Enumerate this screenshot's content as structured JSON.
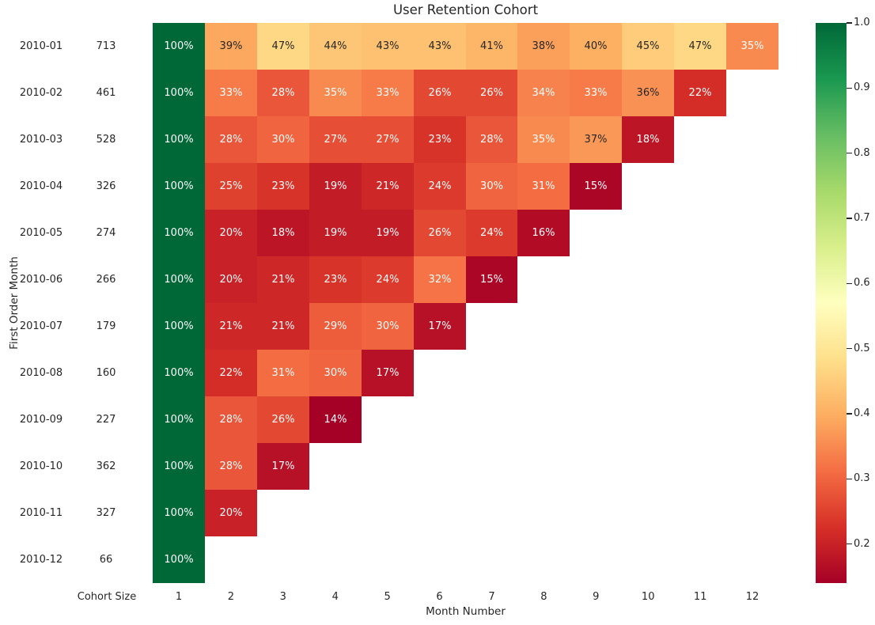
{
  "chart_data": {
    "type": "heatmap",
    "title": "User Retention Cohort",
    "xlabel": "Month Number",
    "ylabel": "First Order Month",
    "row_header_label": "Cohort Size",
    "x_ticks": [
      "1",
      "2",
      "3",
      "4",
      "5",
      "6",
      "7",
      "8",
      "9",
      "10",
      "11",
      "12"
    ],
    "colormap": "RdYlGn",
    "vmin": 0.14,
    "vmax": 1.0,
    "annotation_format": "percent",
    "rows": [
      {
        "first_order_month": "2010-01",
        "cohort_size": "713",
        "retention_pct": [
          100,
          39,
          47,
          44,
          43,
          43,
          41,
          38,
          40,
          45,
          47,
          35
        ]
      },
      {
        "first_order_month": "2010-02",
        "cohort_size": "461",
        "retention_pct": [
          100,
          33,
          28,
          35,
          33,
          26,
          26,
          34,
          33,
          36,
          22
        ]
      },
      {
        "first_order_month": "2010-03",
        "cohort_size": "528",
        "retention_pct": [
          100,
          28,
          30,
          27,
          27,
          23,
          28,
          35,
          37,
          18
        ]
      },
      {
        "first_order_month": "2010-04",
        "cohort_size": "326",
        "retention_pct": [
          100,
          25,
          23,
          19,
          21,
          24,
          30,
          31,
          15
        ]
      },
      {
        "first_order_month": "2010-05",
        "cohort_size": "274",
        "retention_pct": [
          100,
          20,
          18,
          19,
          19,
          26,
          24,
          16
        ]
      },
      {
        "first_order_month": "2010-06",
        "cohort_size": "266",
        "retention_pct": [
          100,
          20,
          21,
          23,
          24,
          32,
          15
        ]
      },
      {
        "first_order_month": "2010-07",
        "cohort_size": "179",
        "retention_pct": [
          100,
          21,
          21,
          29,
          30,
          17
        ]
      },
      {
        "first_order_month": "2010-08",
        "cohort_size": "160",
        "retention_pct": [
          100,
          22,
          31,
          30,
          17
        ]
      },
      {
        "first_order_month": "2010-09",
        "cohort_size": "227",
        "retention_pct": [
          100,
          28,
          26,
          14
        ]
      },
      {
        "first_order_month": "2010-10",
        "cohort_size": "362",
        "retention_pct": [
          100,
          28,
          17
        ]
      },
      {
        "first_order_month": "2010-11",
        "cohort_size": "327",
        "retention_pct": [
          100,
          20
        ]
      },
      {
        "first_order_month": "2010-12",
        "cohort_size": "66",
        "retention_pct": [
          100
        ]
      }
    ],
    "colorbar": {
      "tick_labels": [
        "1.0",
        "0.9",
        "0.8",
        "0.7",
        "0.6",
        "0.5",
        "0.4",
        "0.3",
        "0.2"
      ],
      "tick_values": [
        1.0,
        0.9,
        0.8,
        0.7,
        0.6,
        0.5,
        0.4,
        0.3,
        0.2
      ]
    },
    "colors": {
      "colormap_stops": [
        "#a50026",
        "#d73027",
        "#f46d43",
        "#fdae61",
        "#fee08b",
        "#ffffbf",
        "#d9ef8b",
        "#a6d96a",
        "#66bd63",
        "#1a9850",
        "#006837"
      ],
      "annotation_dark_text": "#262626",
      "annotation_light_text": "#ffffff",
      "axis_text": "#262626",
      "background": "#ffffff"
    }
  }
}
